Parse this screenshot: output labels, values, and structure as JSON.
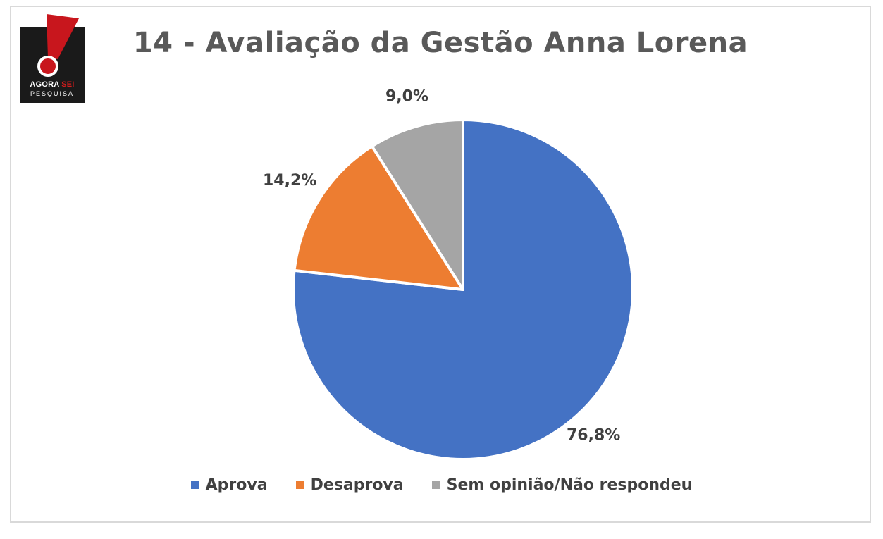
{
  "logo": {
    "word_agora": "AGORA",
    "word_sei": "SEI",
    "word_pesquisa": "PESQUISA"
  },
  "chart_data": {
    "type": "pie",
    "title": "14 - Avaliação da Gestão Anna Lorena",
    "slices": [
      {
        "name": "Aprova",
        "value": 76.8,
        "label": "76,8%",
        "color": "#4472C4"
      },
      {
        "name": "Desaprova",
        "value": 14.2,
        "label": "14,2%",
        "color": "#ED7D31"
      },
      {
        "name": "Sem opinião/Não respondeu",
        "value": 9.0,
        "label": "9,0%",
        "color": "#A5A5A5"
      }
    ],
    "start_angle": "12 o'clock",
    "direction": "clockwise",
    "legend_position": "bottom"
  }
}
